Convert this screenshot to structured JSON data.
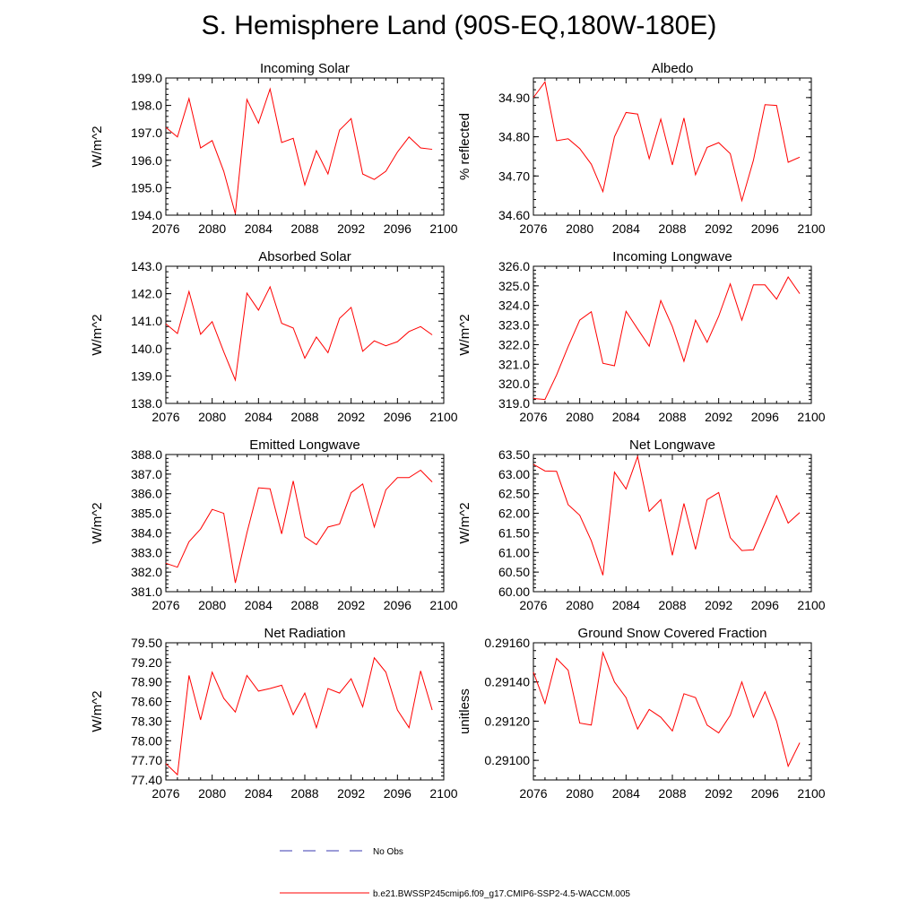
{
  "title": "S. Hemisphere Land (90S-EQ,180W-180E)",
  "legend": {
    "obs_label": "No Obs",
    "model_label": "b.e21.BWSSP245cmip6.f09_g17.CMIP6-SSP2-4.5-WACCM.005",
    "obs_color": "#3a3ab0",
    "model_color": "#ff0000"
  },
  "chart_data": [
    {
      "type": "line",
      "title": "Incoming Solar",
      "ylabel": "W/m^2",
      "xlim": [
        2076,
        2100
      ],
      "xticks": [
        "2076",
        "2080",
        "2084",
        "2088",
        "2092",
        "2096",
        "2100"
      ],
      "ylim": [
        194.0,
        199.0
      ],
      "yticks": [
        "194.0",
        "195.0",
        "196.0",
        "197.0",
        "198.0",
        "199.0"
      ],
      "x": [
        2076,
        2077,
        2078,
        2079,
        2080,
        2081,
        2082,
        2083,
        2084,
        2085,
        2086,
        2087,
        2088,
        2089,
        2090,
        2091,
        2092,
        2093,
        2094,
        2095,
        2096,
        2097,
        2098,
        2099
      ],
      "series": [
        {
          "name": "b.e21.BWSSP245cmip6.f09_g17.CMIP6-SSP2-4.5-WACCM.005",
          "values": [
            197.2,
            196.85,
            198.25,
            196.45,
            196.72,
            195.6,
            194.05,
            198.22,
            197.35,
            198.6,
            196.65,
            196.8,
            195.1,
            196.35,
            195.5,
            197.1,
            197.52,
            195.5,
            195.3,
            195.6,
            196.3,
            196.85,
            196.45,
            196.4
          ]
        }
      ]
    },
    {
      "type": "line",
      "title": "Albedo",
      "ylabel": "% reflected",
      "xlim": [
        2076,
        2100
      ],
      "xticks": [
        "2076",
        "2080",
        "2084",
        "2088",
        "2092",
        "2096",
        "2100"
      ],
      "ylim": [
        34.6,
        34.95
      ],
      "yticks": [
        "34.60",
        "34.70",
        "34.80",
        "34.90"
      ],
      "x": [
        2076,
        2077,
        2078,
        2079,
        2080,
        2081,
        2082,
        2083,
        2084,
        2085,
        2086,
        2087,
        2088,
        2089,
        2090,
        2091,
        2092,
        2093,
        2094,
        2095,
        2096,
        2097,
        2098,
        2099
      ],
      "series": [
        {
          "name": "b.e21.BWSSP245cmip6.f09_g17.CMIP6-SSP2-4.5-WACCM.005",
          "values": [
            34.9,
            34.94,
            34.79,
            34.795,
            34.77,
            34.73,
            34.66,
            34.8,
            34.862,
            34.858,
            34.744,
            34.845,
            34.728,
            34.848,
            34.703,
            34.773,
            34.785,
            34.757,
            34.637,
            34.74,
            34.882,
            34.88,
            34.735,
            34.748
          ]
        }
      ]
    },
    {
      "type": "line",
      "title": "Absorbed Solar",
      "ylabel": "W/m^2",
      "xlim": [
        2076,
        2100
      ],
      "xticks": [
        "2076",
        "2080",
        "2084",
        "2088",
        "2092",
        "2096",
        "2100"
      ],
      "ylim": [
        138.0,
        143.0
      ],
      "yticks": [
        "138.0",
        "139.0",
        "140.0",
        "141.0",
        "142.0",
        "143.0"
      ],
      "x": [
        2076,
        2077,
        2078,
        2079,
        2080,
        2081,
        2082,
        2083,
        2084,
        2085,
        2086,
        2087,
        2088,
        2089,
        2090,
        2091,
        2092,
        2093,
        2094,
        2095,
        2096,
        2097,
        2098,
        2099
      ],
      "series": [
        {
          "name": "b.e21.BWSSP245cmip6.f09_g17.CMIP6-SSP2-4.5-WACCM.005",
          "values": [
            140.9,
            140.55,
            142.08,
            140.52,
            140.98,
            139.88,
            138.85,
            142.02,
            141.4,
            142.25,
            140.92,
            140.75,
            139.65,
            140.42,
            139.85,
            141.1,
            141.5,
            139.9,
            140.28,
            140.1,
            140.25,
            140.62,
            140.8,
            140.5
          ]
        }
      ]
    },
    {
      "type": "line",
      "title": "Incoming Longwave",
      "ylabel": "W/m^2",
      "xlim": [
        2076,
        2100
      ],
      "xticks": [
        "2076",
        "2080",
        "2084",
        "2088",
        "2092",
        "2096",
        "2100"
      ],
      "ylim": [
        319.0,
        326.0
      ],
      "yticks": [
        "319.0",
        "320.0",
        "321.0",
        "322.0",
        "323.0",
        "324.0",
        "325.0",
        "326.0"
      ],
      "x": [
        2076,
        2077,
        2078,
        2079,
        2080,
        2081,
        2082,
        2083,
        2084,
        2085,
        2086,
        2087,
        2088,
        2089,
        2090,
        2091,
        2092,
        2093,
        2094,
        2095,
        2096,
        2097,
        2098,
        2099
      ],
      "series": [
        {
          "name": "b.e21.BWSSP245cmip6.f09_g17.CMIP6-SSP2-4.5-WACCM.005",
          "values": [
            319.25,
            319.2,
            320.45,
            321.9,
            323.25,
            323.68,
            321.05,
            320.92,
            323.7,
            322.8,
            321.92,
            324.25,
            322.92,
            321.15,
            323.25,
            322.12,
            323.45,
            325.1,
            323.25,
            325.05,
            325.05,
            324.32,
            325.45,
            324.6
          ]
        }
      ]
    },
    {
      "type": "line",
      "title": "Emitted Longwave",
      "ylabel": "W/m^2",
      "xlim": [
        2076,
        2100
      ],
      "xticks": [
        "2076",
        "2080",
        "2084",
        "2088",
        "2092",
        "2096",
        "2100"
      ],
      "ylim": [
        381.0,
        388.0
      ],
      "yticks": [
        "381.0",
        "382.0",
        "383.0",
        "384.0",
        "385.0",
        "386.0",
        "387.0",
        "388.0"
      ],
      "x": [
        2076,
        2077,
        2078,
        2079,
        2080,
        2081,
        2082,
        2083,
        2084,
        2085,
        2086,
        2087,
        2088,
        2089,
        2090,
        2091,
        2092,
        2093,
        2094,
        2095,
        2096,
        2097,
        2098,
        2099
      ],
      "series": [
        {
          "name": "b.e21.BWSSP245cmip6.f09_g17.CMIP6-SSP2-4.5-WACCM.005",
          "values": [
            382.45,
            382.25,
            383.55,
            384.2,
            385.2,
            385.0,
            381.45,
            384.0,
            386.3,
            386.25,
            383.95,
            386.65,
            383.8,
            383.4,
            384.3,
            384.45,
            386.05,
            386.5,
            384.3,
            386.2,
            386.82,
            386.82,
            387.2,
            386.6
          ]
        }
      ]
    },
    {
      "type": "line",
      "title": "Net Longwave",
      "ylabel": "W/m^2",
      "xlim": [
        2076,
        2100
      ],
      "xticks": [
        "2076",
        "2080",
        "2084",
        "2088",
        "2092",
        "2096",
        "2100"
      ],
      "ylim": [
        60.0,
        63.5
      ],
      "yticks": [
        "60.00",
        "60.50",
        "61.00",
        "61.50",
        "62.00",
        "62.50",
        "63.00",
        "63.50"
      ],
      "x": [
        2076,
        2077,
        2078,
        2079,
        2080,
        2081,
        2082,
        2083,
        2084,
        2085,
        2086,
        2087,
        2088,
        2089,
        2090,
        2091,
        2092,
        2093,
        2094,
        2095,
        2096,
        2097,
        2098,
        2099
      ],
      "series": [
        {
          "name": "b.e21.BWSSP245cmip6.f09_g17.CMIP6-SSP2-4.5-WACCM.005",
          "values": [
            63.25,
            63.08,
            63.07,
            62.22,
            61.95,
            61.3,
            60.42,
            63.05,
            62.62,
            63.45,
            62.05,
            62.35,
            60.93,
            62.25,
            61.08,
            62.35,
            62.53,
            61.38,
            61.05,
            61.07,
            61.75,
            62.45,
            61.75,
            62.02
          ]
        }
      ]
    },
    {
      "type": "line",
      "title": "Net Radiation",
      "ylabel": "W/m^2",
      "xlim": [
        2076,
        2100
      ],
      "xticks": [
        "2076",
        "2080",
        "2084",
        "2088",
        "2092",
        "2096",
        "2100"
      ],
      "ylim": [
        77.4,
        79.5
      ],
      "yticks": [
        "77.40",
        "77.70",
        "78.00",
        "78.30",
        "78.60",
        "78.90",
        "79.20",
        "79.50"
      ],
      "x": [
        2076,
        2077,
        2078,
        2079,
        2080,
        2081,
        2082,
        2083,
        2084,
        2085,
        2086,
        2087,
        2088,
        2089,
        2090,
        2091,
        2092,
        2093,
        2094,
        2095,
        2096,
        2097,
        2098,
        2099
      ],
      "series": [
        {
          "name": "b.e21.BWSSP245cmip6.f09_g17.CMIP6-SSP2-4.5-WACCM.005",
          "values": [
            77.65,
            77.48,
            79.0,
            78.32,
            79.05,
            78.65,
            78.44,
            79.0,
            78.76,
            78.8,
            78.85,
            78.4,
            78.73,
            78.2,
            78.8,
            78.73,
            78.95,
            78.52,
            79.27,
            79.05,
            78.47,
            78.2,
            79.07,
            78.47
          ]
        }
      ]
    },
    {
      "type": "line",
      "title": "Ground Snow Covered Fraction",
      "ylabel": "unitless",
      "xlim": [
        2076,
        2100
      ],
      "xticks": [
        "2076",
        "2080",
        "2084",
        "2088",
        "2092",
        "2096",
        "2100"
      ],
      "ylim": [
        0.2909,
        0.2916
      ],
      "yticks": [
        "0.29100",
        "0.29120",
        "0.29140",
        "0.29160"
      ],
      "x": [
        2076,
        2077,
        2078,
        2079,
        2080,
        2081,
        2082,
        2083,
        2084,
        2085,
        2086,
        2087,
        2088,
        2089,
        2090,
        2091,
        2092,
        2093,
        2094,
        2095,
        2096,
        2097,
        2098,
        2099
      ],
      "series": [
        {
          "name": "b.e21.BWSSP245cmip6.f09_g17.CMIP6-SSP2-4.5-WACCM.005",
          "values": [
            0.29145,
            0.29129,
            0.29152,
            0.29146,
            0.29119,
            0.29118,
            0.29155,
            0.2914,
            0.29132,
            0.29116,
            0.29126,
            0.29122,
            0.29115,
            0.29134,
            0.29132,
            0.29118,
            0.29114,
            0.29123,
            0.2914,
            0.29122,
            0.29135,
            0.2912,
            0.29097,
            0.29109
          ]
        }
      ]
    }
  ]
}
